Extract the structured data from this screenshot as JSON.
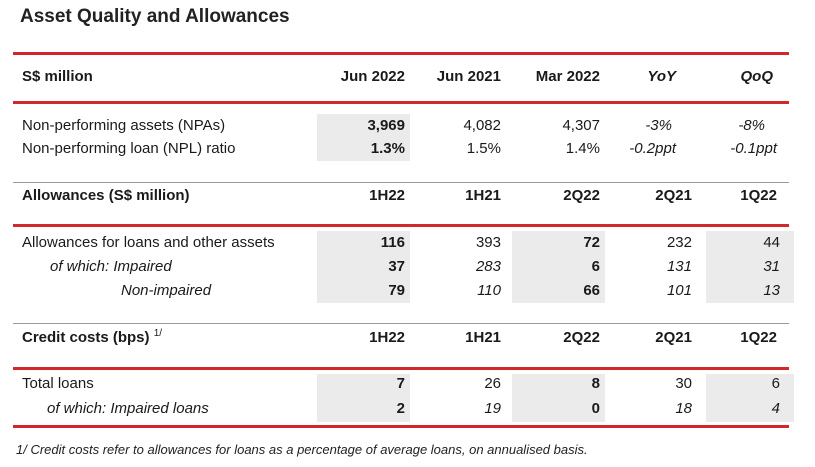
{
  "title": "Asset Quality and Allowances",
  "section1": {
    "header": [
      "S$ million",
      "Jun 2022",
      "Jun 2021",
      "Mar 2022",
      "YoY",
      "QoQ"
    ],
    "rows": [
      [
        "Non-performing assets (NPAs)",
        "3,969",
        "4,082",
        "4,307",
        "-3%",
        "-8%"
      ],
      [
        "Non-performing loan (NPL) ratio",
        "1.3%",
        "1.5%",
        "1.4%",
        "-0.2ppt",
        "-0.1ppt"
      ]
    ]
  },
  "section2": {
    "header": [
      "Allowances (S$ million)",
      "1H22",
      "1H21",
      "2Q22",
      "2Q21",
      "1Q22"
    ],
    "rows": [
      [
        "Allowances for loans and other assets",
        "116",
        "393",
        "72",
        "232",
        "44"
      ],
      [
        "of which: Impaired",
        "37",
        "283",
        "6",
        "131",
        "31"
      ],
      [
        "Non-impaired",
        "79",
        "110",
        "66",
        "101",
        "13"
      ]
    ]
  },
  "section3": {
    "header": [
      "Credit costs (bps)",
      "1H22",
      "1H21",
      "2Q22",
      "2Q21",
      "1Q22"
    ],
    "header_superscript": "1/",
    "rows": [
      [
        "Total loans",
        "7",
        "26",
        "8",
        "30",
        "6"
      ],
      [
        "of which: Impaired loans",
        "2",
        "19",
        "0",
        "18",
        "4"
      ]
    ]
  },
  "footnote": "1/  Credit costs refer to allowances for loans as a percentage of average loans, on annualised basis."
}
